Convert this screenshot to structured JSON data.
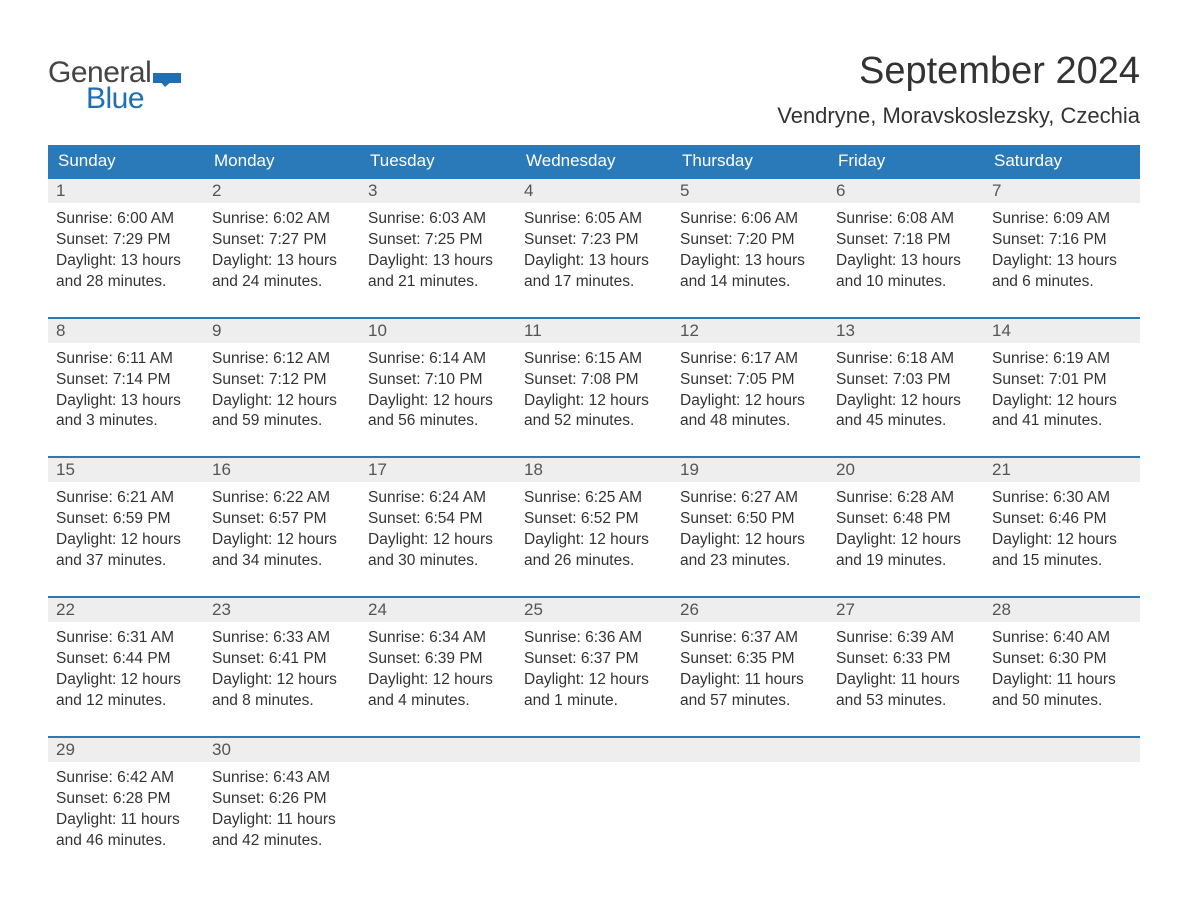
{
  "brand": {
    "logo_general": "General",
    "logo_blue": "Blue",
    "flag_color": "#1f6fb2"
  },
  "header": {
    "month_title": "September 2024",
    "location": "Vendryne, Moravskoslezsky, Czechia"
  },
  "colors": {
    "header_bg": "#2a7ab9",
    "header_text": "#ffffff",
    "daynum_bg": "#eeeeee",
    "week_border": "#2a7ab9",
    "body_text": "#333333",
    "page_bg": "#ffffff"
  },
  "days_of_week": [
    "Sunday",
    "Monday",
    "Tuesday",
    "Wednesday",
    "Thursday",
    "Friday",
    "Saturday"
  ],
  "weeks": [
    [
      {
        "n": "1",
        "sunrise": "6:00 AM",
        "sunset": "7:29 PM",
        "daylight": "13 hours and 28 minutes."
      },
      {
        "n": "2",
        "sunrise": "6:02 AM",
        "sunset": "7:27 PM",
        "daylight": "13 hours and 24 minutes."
      },
      {
        "n": "3",
        "sunrise": "6:03 AM",
        "sunset": "7:25 PM",
        "daylight": "13 hours and 21 minutes."
      },
      {
        "n": "4",
        "sunrise": "6:05 AM",
        "sunset": "7:23 PM",
        "daylight": "13 hours and 17 minutes."
      },
      {
        "n": "5",
        "sunrise": "6:06 AM",
        "sunset": "7:20 PM",
        "daylight": "13 hours and 14 minutes."
      },
      {
        "n": "6",
        "sunrise": "6:08 AM",
        "sunset": "7:18 PM",
        "daylight": "13 hours and 10 minutes."
      },
      {
        "n": "7",
        "sunrise": "6:09 AM",
        "sunset": "7:16 PM",
        "daylight": "13 hours and 6 minutes."
      }
    ],
    [
      {
        "n": "8",
        "sunrise": "6:11 AM",
        "sunset": "7:14 PM",
        "daylight": "13 hours and 3 minutes."
      },
      {
        "n": "9",
        "sunrise": "6:12 AM",
        "sunset": "7:12 PM",
        "daylight": "12 hours and 59 minutes."
      },
      {
        "n": "10",
        "sunrise": "6:14 AM",
        "sunset": "7:10 PM",
        "daylight": "12 hours and 56 minutes."
      },
      {
        "n": "11",
        "sunrise": "6:15 AM",
        "sunset": "7:08 PM",
        "daylight": "12 hours and 52 minutes."
      },
      {
        "n": "12",
        "sunrise": "6:17 AM",
        "sunset": "7:05 PM",
        "daylight": "12 hours and 48 minutes."
      },
      {
        "n": "13",
        "sunrise": "6:18 AM",
        "sunset": "7:03 PM",
        "daylight": "12 hours and 45 minutes."
      },
      {
        "n": "14",
        "sunrise": "6:19 AM",
        "sunset": "7:01 PM",
        "daylight": "12 hours and 41 minutes."
      }
    ],
    [
      {
        "n": "15",
        "sunrise": "6:21 AM",
        "sunset": "6:59 PM",
        "daylight": "12 hours and 37 minutes."
      },
      {
        "n": "16",
        "sunrise": "6:22 AM",
        "sunset": "6:57 PM",
        "daylight": "12 hours and 34 minutes."
      },
      {
        "n": "17",
        "sunrise": "6:24 AM",
        "sunset": "6:54 PM",
        "daylight": "12 hours and 30 minutes."
      },
      {
        "n": "18",
        "sunrise": "6:25 AM",
        "sunset": "6:52 PM",
        "daylight": "12 hours and 26 minutes."
      },
      {
        "n": "19",
        "sunrise": "6:27 AM",
        "sunset": "6:50 PM",
        "daylight": "12 hours and 23 minutes."
      },
      {
        "n": "20",
        "sunrise": "6:28 AM",
        "sunset": "6:48 PM",
        "daylight": "12 hours and 19 minutes."
      },
      {
        "n": "21",
        "sunrise": "6:30 AM",
        "sunset": "6:46 PM",
        "daylight": "12 hours and 15 minutes."
      }
    ],
    [
      {
        "n": "22",
        "sunrise": "6:31 AM",
        "sunset": "6:44 PM",
        "daylight": "12 hours and 12 minutes."
      },
      {
        "n": "23",
        "sunrise": "6:33 AM",
        "sunset": "6:41 PM",
        "daylight": "12 hours and 8 minutes."
      },
      {
        "n": "24",
        "sunrise": "6:34 AM",
        "sunset": "6:39 PM",
        "daylight": "12 hours and 4 minutes."
      },
      {
        "n": "25",
        "sunrise": "6:36 AM",
        "sunset": "6:37 PM",
        "daylight": "12 hours and 1 minute."
      },
      {
        "n": "26",
        "sunrise": "6:37 AM",
        "sunset": "6:35 PM",
        "daylight": "11 hours and 57 minutes."
      },
      {
        "n": "27",
        "sunrise": "6:39 AM",
        "sunset": "6:33 PM",
        "daylight": "11 hours and 53 minutes."
      },
      {
        "n": "28",
        "sunrise": "6:40 AM",
        "sunset": "6:30 PM",
        "daylight": "11 hours and 50 minutes."
      }
    ],
    [
      {
        "n": "29",
        "sunrise": "6:42 AM",
        "sunset": "6:28 PM",
        "daylight": "11 hours and 46 minutes."
      },
      {
        "n": "30",
        "sunrise": "6:43 AM",
        "sunset": "6:26 PM",
        "daylight": "11 hours and 42 minutes."
      },
      null,
      null,
      null,
      null,
      null
    ]
  ],
  "labels": {
    "sunrise": "Sunrise:",
    "sunset": "Sunset:",
    "daylight": "Daylight:"
  }
}
